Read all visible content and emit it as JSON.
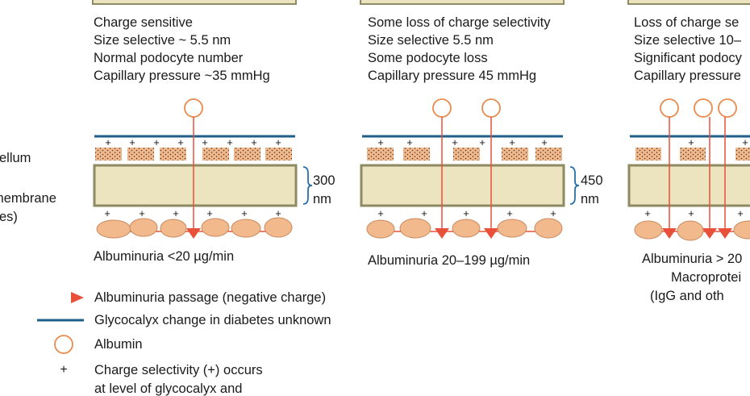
{
  "left_labels": [
    "ellum",
    "membrane",
    "es)"
  ],
  "panels": [
    {
      "lines": [
        "Charge sensitive",
        "Size selective ~ 5.5 nm",
        "Normal podocyte number",
        "Capillary pressure ~35 mmHg"
      ],
      "brace_value": "300",
      "brace_unit": "nm",
      "caption": [
        "Albuminuria <20 µg/min"
      ]
    },
    {
      "lines": [
        "Some loss of charge selectivity",
        "Size selective 5.5 nm",
        "Some podocyte loss",
        "Capillary pressure 45 mmHg"
      ],
      "brace_value": "450",
      "brace_unit": "nm",
      "caption": [
        "Albuminuria 20–199 µg/min"
      ]
    },
    {
      "lines": [
        "Loss of charge se",
        "Size selective 10–",
        "Significant podocy",
        "Capillary pressure"
      ],
      "caption": [
        "Albuminuria > 20",
        "Macroprotei",
        "(IgG and oth"
      ]
    }
  ],
  "legend": [
    {
      "symbol": "red-arrow",
      "text": "Albuminuria passage (negative charge)"
    },
    {
      "symbol": "blue-line",
      "text": "Glycocalyx change in diabetes unknown"
    },
    {
      "symbol": "albumin-circle",
      "text": "Albumin"
    },
    {
      "symbol": "plus",
      "text": "Charge selectivity (+) occurs",
      "text2": "at level of glycocalyx and"
    }
  ],
  "colors": {
    "glycocalyx": "#1f5f8b",
    "endothelium": "#f2b98d",
    "gbm_fill": "#ece3bf",
    "gbm_border": "#8e8a62",
    "podocyte": "#f2b98d",
    "passage": "#e8503a",
    "albumin": "#e88a4c",
    "brace": "#2a6fa8"
  }
}
